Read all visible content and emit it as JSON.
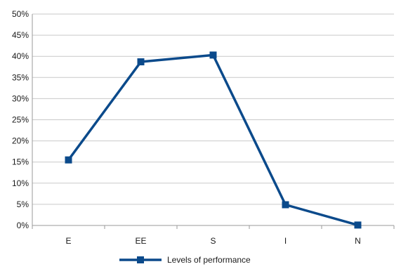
{
  "chart_data": {
    "type": "line",
    "categories": [
      "E",
      "EE",
      "S",
      "I",
      "N"
    ],
    "series": [
      {
        "name": "Levels of performance",
        "values": [
          15.5,
          38.7,
          40.3,
          4.9,
          0.1
        ],
        "color": "#0b4a8b"
      }
    ],
    "ylim": [
      0,
      50
    ],
    "yticks": [
      0,
      5,
      10,
      15,
      20,
      25,
      30,
      35,
      40,
      45,
      50
    ],
    "ytick_format": "%",
    "grid": "horizontal",
    "gridline_color": "#c9c9c9",
    "axis_color": "#9a9a9a",
    "marker": "square",
    "legend": "bottom-center",
    "title": "",
    "xlabel": "",
    "ylabel": ""
  }
}
